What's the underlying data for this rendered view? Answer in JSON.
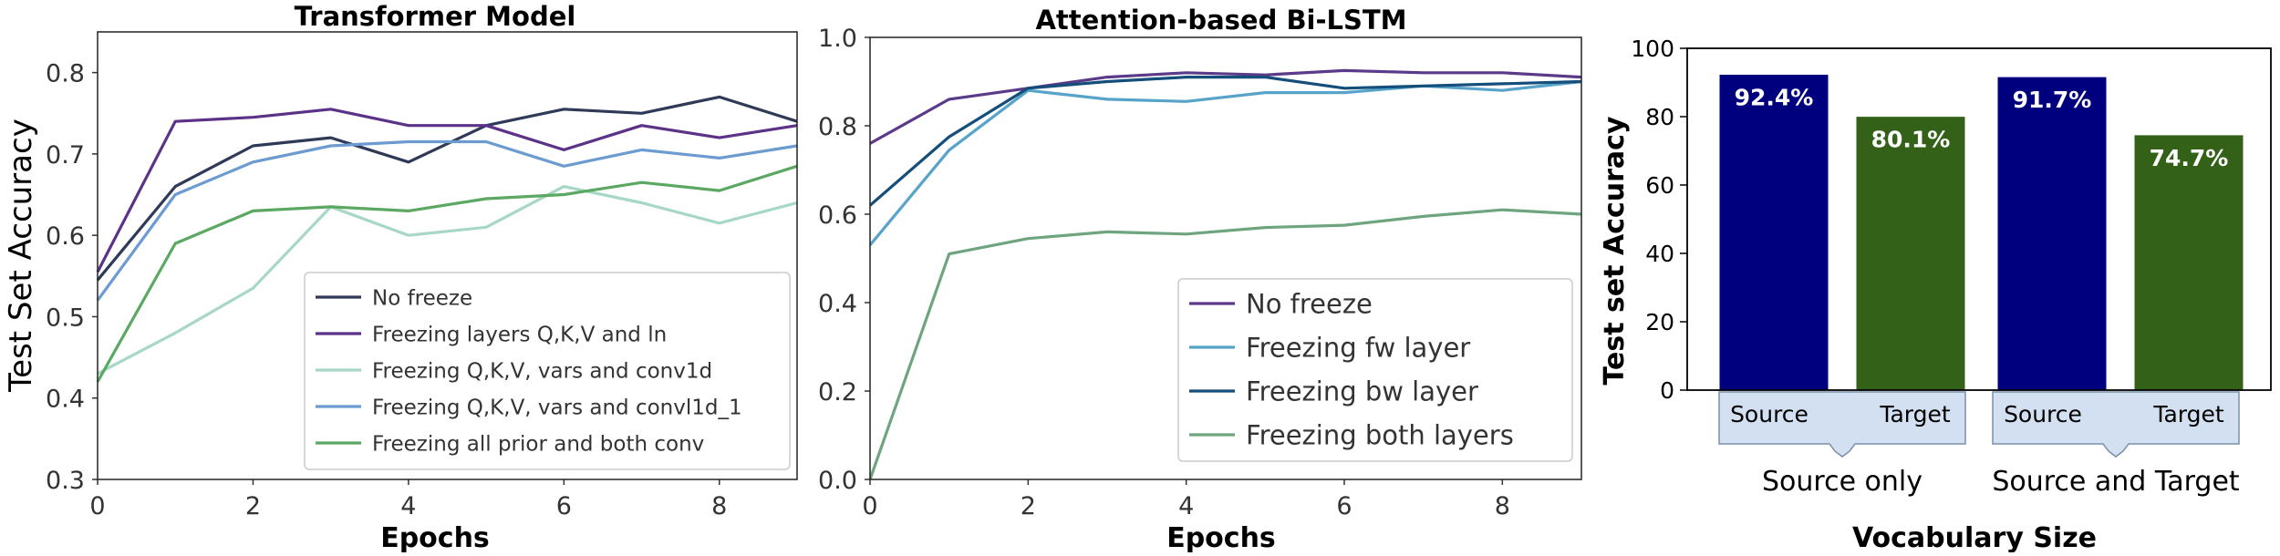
{
  "chart_data": [
    {
      "type": "line",
      "title": "Transformer Model",
      "xlabel": "Epochs",
      "ylabel": "Test Set Accuracy",
      "xlim": [
        0,
        9
      ],
      "ylim": [
        0.3,
        0.85
      ],
      "xticks": [
        0,
        2,
        4,
        6,
        8
      ],
      "xtick_labels": [
        "0",
        "2",
        "4",
        "6",
        "8"
      ],
      "yticks": [
        0.3,
        0.4,
        0.5,
        0.6,
        0.7,
        0.8
      ],
      "ytick_labels": [
        "0.3",
        "0.4",
        "0.5",
        "0.6",
        "0.7",
        "0.8"
      ],
      "legend_position": "lower-right",
      "x": [
        0,
        1,
        2,
        3,
        4,
        5,
        6,
        7,
        8,
        9
      ],
      "series": [
        {
          "name": "No freeze",
          "color": "#2e3a57",
          "values": [
            0.545,
            0.66,
            0.71,
            0.72,
            0.69,
            0.735,
            0.755,
            0.75,
            0.77,
            0.74
          ]
        },
        {
          "name": "Freezing layers Q,K,V and ln",
          "color": "#5b3288",
          "values": [
            0.555,
            0.74,
            0.745,
            0.755,
            0.735,
            0.735,
            0.705,
            0.735,
            0.72,
            0.735
          ]
        },
        {
          "name": "Freezing Q,K,V, vars and conv1d",
          "color": "#a7d7c5",
          "values": [
            0.43,
            0.48,
            0.535,
            0.635,
            0.6,
            0.61,
            0.66,
            0.64,
            0.615,
            0.64
          ]
        },
        {
          "name": "Freezing Q,K,V, vars and convl1d_1",
          "color": "#6b9bd1",
          "values": [
            0.52,
            0.65,
            0.69,
            0.71,
            0.715,
            0.715,
            0.685,
            0.705,
            0.695,
            0.71
          ]
        },
        {
          "name": "Freezing all prior and both conv",
          "color": "#5aa862",
          "values": [
            0.42,
            0.59,
            0.63,
            0.635,
            0.63,
            0.645,
            0.65,
            0.665,
            0.655,
            0.685
          ]
        }
      ]
    },
    {
      "type": "line",
      "title": "Attention-based Bi-LSTM",
      "xlabel": "Epochs",
      "ylabel": "",
      "xlim": [
        0,
        9
      ],
      "ylim": [
        0.0,
        1.0
      ],
      "xticks": [
        0,
        2,
        4,
        6,
        8
      ],
      "xtick_labels": [
        "0",
        "2",
        "4",
        "6",
        "8"
      ],
      "yticks": [
        0.0,
        0.2,
        0.4,
        0.6,
        0.8,
        1.0
      ],
      "ytick_labels": [
        "0.0",
        "0.2",
        "0.4",
        "0.6",
        "0.8",
        "1.0"
      ],
      "legend_position": "lower-right",
      "x": [
        0,
        1,
        2,
        3,
        4,
        5,
        6,
        7,
        8,
        9
      ],
      "series": [
        {
          "name": "No freeze",
          "color": "#5b3a8a",
          "values": [
            0.76,
            0.86,
            0.885,
            0.91,
            0.92,
            0.915,
            0.925,
            0.92,
            0.92,
            0.91
          ]
        },
        {
          "name": "Freezing fw layer",
          "color": "#57a3c9",
          "values": [
            0.53,
            0.745,
            0.88,
            0.86,
            0.855,
            0.875,
            0.875,
            0.89,
            0.88,
            0.9
          ]
        },
        {
          "name": "Freezing bw layer",
          "color": "#144e7a",
          "values": [
            0.62,
            0.775,
            0.885,
            0.9,
            0.91,
            0.91,
            0.885,
            0.89,
            0.895,
            0.9
          ]
        },
        {
          "name": "Freezing both layers",
          "color": "#6ea57e",
          "values": [
            0.0,
            0.51,
            0.545,
            0.56,
            0.555,
            0.57,
            0.575,
            0.595,
            0.61,
            0.6
          ]
        }
      ]
    },
    {
      "type": "bar",
      "title": "",
      "xlabel": "Vocabulary Size",
      "ylabel": "Test set Accuracy",
      "ylim": [
        0,
        100
      ],
      "yticks": [
        0,
        20,
        40,
        60,
        80,
        100
      ],
      "ytick_labels": [
        "0",
        "20",
        "40",
        "60",
        "80",
        "100"
      ],
      "groups": [
        "Source only",
        "Source and Target"
      ],
      "categories": [
        "Source",
        "Target",
        "Source",
        "Target"
      ],
      "values": [
        92.4,
        80.1,
        91.7,
        74.7
      ],
      "value_labels": [
        "92.4%",
        "80.1%",
        "91.7%",
        "74.7%"
      ],
      "colors": [
        "#00007f",
        "#336118",
        "#00007f",
        "#336118"
      ]
    }
  ]
}
